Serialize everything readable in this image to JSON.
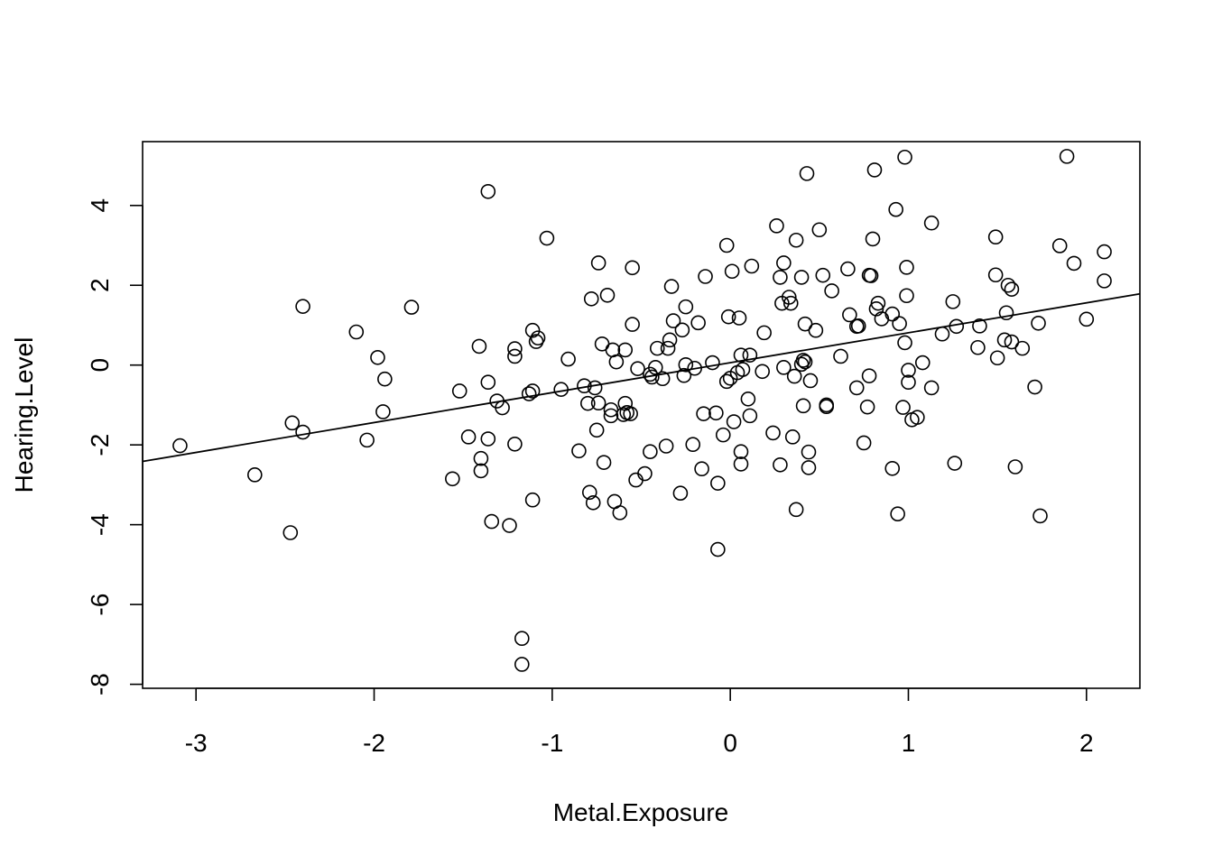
{
  "chart_data": {
    "type": "scatter",
    "title": "",
    "xlabel": "Metal.Exposure",
    "ylabel": "Hearing.Level",
    "xlim": [
      -3.3,
      2.3
    ],
    "ylim": [
      -8.1,
      5.6
    ],
    "xticks": [
      -3,
      -2,
      -1,
      0,
      1,
      2
    ],
    "yticks": [
      -8,
      -6,
      -4,
      -2,
      0,
      2,
      4
    ],
    "grid": false,
    "legend": "none",
    "fit_line": {
      "intercept": 0.06,
      "slope": 0.75
    },
    "points": [
      [
        -3.09,
        -2.02
      ],
      [
        -2.67,
        -2.75
      ],
      [
        -2.47,
        -4.2
      ],
      [
        -2.46,
        -1.45
      ],
      [
        -2.4,
        1.47
      ],
      [
        -2.4,
        -1.68
      ],
      [
        -2.1,
        0.83
      ],
      [
        -2.04,
        -1.88
      ],
      [
        -1.98,
        0.19
      ],
      [
        -1.95,
        -1.17
      ],
      [
        -1.94,
        -0.35
      ],
      [
        -1.79,
        1.45
      ],
      [
        -1.56,
        -2.85
      ],
      [
        -1.52,
        -0.65
      ],
      [
        -1.47,
        -1.8
      ],
      [
        -1.41,
        0.47
      ],
      [
        -1.4,
        -2.34
      ],
      [
        -1.4,
        -2.65
      ],
      [
        -1.36,
        4.35
      ],
      [
        -1.36,
        -0.43
      ],
      [
        -1.36,
        -1.85
      ],
      [
        -1.34,
        -3.92
      ],
      [
        -1.31,
        -0.9
      ],
      [
        -1.28,
        -1.07
      ],
      [
        -1.24,
        -4.02
      ],
      [
        -1.21,
        0.41
      ],
      [
        -1.21,
        0.22
      ],
      [
        -1.21,
        -1.98
      ],
      [
        -1.17,
        -6.85
      ],
      [
        -1.17,
        -7.5
      ],
      [
        -1.13,
        -0.72
      ],
      [
        -1.11,
        -0.65
      ],
      [
        -1.11,
        0.87
      ],
      [
        -1.11,
        -3.38
      ],
      [
        -1.09,
        0.59
      ],
      [
        -1.08,
        0.68
      ],
      [
        -1.03,
        3.18
      ],
      [
        -0.95,
        -0.61
      ],
      [
        -0.91,
        0.15
      ],
      [
        -0.85,
        -2.15
      ],
      [
        -0.82,
        -0.52
      ],
      [
        -0.8,
        -0.96
      ],
      [
        -0.79,
        -3.19
      ],
      [
        -0.78,
        1.66
      ],
      [
        -0.77,
        -3.45
      ],
      [
        -0.76,
        -0.57
      ],
      [
        -0.75,
        -1.63
      ],
      [
        -0.74,
        -0.95
      ],
      [
        -0.74,
        2.56
      ],
      [
        -0.72,
        0.53
      ],
      [
        -0.71,
        -2.44
      ],
      [
        -0.69,
        1.75
      ],
      [
        -0.67,
        -1.12
      ],
      [
        -0.67,
        -1.27
      ],
      [
        -0.66,
        0.38
      ],
      [
        -0.65,
        -3.42
      ],
      [
        -0.64,
        0.08
      ],
      [
        -0.62,
        -3.7
      ],
      [
        -0.6,
        -1.24
      ],
      [
        -0.59,
        0.38
      ],
      [
        -0.59,
        -0.96
      ],
      [
        -0.58,
        -1.19
      ],
      [
        -0.56,
        -1.22
      ],
      [
        -0.55,
        2.44
      ],
      [
        -0.55,
        1.02
      ],
      [
        -0.53,
        -2.88
      ],
      [
        -0.52,
        -0.09
      ],
      [
        -0.48,
        -2.72
      ],
      [
        -0.45,
        -2.17
      ],
      [
        -0.45,
        -0.23
      ],
      [
        -0.44,
        -0.3
      ],
      [
        -0.42,
        -0.06
      ],
      [
        -0.41,
        0.42
      ],
      [
        -0.38,
        -0.34
      ],
      [
        -0.36,
        -2.03
      ],
      [
        -0.35,
        0.42
      ],
      [
        -0.34,
        0.63
      ],
      [
        -0.33,
        1.97
      ],
      [
        -0.32,
        1.11
      ],
      [
        -0.28,
        -3.21
      ],
      [
        -0.27,
        0.88
      ],
      [
        -0.26,
        -0.26
      ],
      [
        -0.25,
        0.01
      ],
      [
        -0.25,
        1.46
      ],
      [
        -0.21,
        -1.99
      ],
      [
        -0.2,
        -0.08
      ],
      [
        -0.18,
        1.06
      ],
      [
        -0.16,
        -2.6
      ],
      [
        -0.15,
        -1.22
      ],
      [
        -0.14,
        2.22
      ],
      [
        -0.1,
        0.06
      ],
      [
        -0.08,
        -1.2
      ],
      [
        -0.07,
        -2.96
      ],
      [
        -0.07,
        -4.62
      ],
      [
        -0.04,
        -1.75
      ],
      [
        -0.02,
        3.0
      ],
      [
        -0.02,
        -0.41
      ],
      [
        -0.01,
        1.21
      ],
      [
        0.0,
        -0.33
      ],
      [
        0.01,
        2.35
      ],
      [
        0.02,
        -1.42
      ],
      [
        0.04,
        -0.19
      ],
      [
        0.05,
        1.18
      ],
      [
        0.06,
        -2.17
      ],
      [
        0.06,
        -2.48
      ],
      [
        0.06,
        0.25
      ],
      [
        0.07,
        -0.11
      ],
      [
        0.1,
        -0.85
      ],
      [
        0.11,
        -1.27
      ],
      [
        0.11,
        0.25
      ],
      [
        0.12,
        2.48
      ],
      [
        0.18,
        -0.16
      ],
      [
        0.19,
        0.81
      ],
      [
        0.24,
        -1.7
      ],
      [
        0.26,
        3.49
      ],
      [
        0.28,
        2.2
      ],
      [
        0.28,
        -2.5
      ],
      [
        0.29,
        1.55
      ],
      [
        0.3,
        -0.06
      ],
      [
        0.3,
        2.56
      ],
      [
        0.33,
        1.7
      ],
      [
        0.34,
        1.55
      ],
      [
        0.35,
        -1.8
      ],
      [
        0.36,
        -0.28
      ],
      [
        0.37,
        3.13
      ],
      [
        0.37,
        -3.62
      ],
      [
        0.4,
        0.02
      ],
      [
        0.4,
        2.2
      ],
      [
        0.41,
        0.12
      ],
      [
        0.41,
        -1.02
      ],
      [
        0.42,
        1.03
      ],
      [
        0.42,
        0.08
      ],
      [
        0.43,
        4.8
      ],
      [
        0.44,
        -2.18
      ],
      [
        0.44,
        -2.57
      ],
      [
        0.45,
        -0.39
      ],
      [
        0.48,
        0.87
      ],
      [
        0.5,
        3.39
      ],
      [
        0.52,
        2.25
      ],
      [
        0.54,
        -1.0
      ],
      [
        0.54,
        -1.04
      ],
      [
        0.57,
        1.86
      ],
      [
        0.62,
        0.22
      ],
      [
        0.66,
        2.41
      ],
      [
        0.67,
        1.26
      ],
      [
        0.71,
        -0.57
      ],
      [
        0.71,
        0.97
      ],
      [
        0.72,
        0.98
      ],
      [
        0.75,
        -1.95
      ],
      [
        0.77,
        -1.05
      ],
      [
        0.78,
        2.25
      ],
      [
        0.78,
        -0.27
      ],
      [
        0.79,
        2.24
      ],
      [
        0.8,
        3.16
      ],
      [
        0.81,
        4.89
      ],
      [
        0.82,
        1.41
      ],
      [
        0.83,
        1.55
      ],
      [
        0.85,
        1.16
      ],
      [
        0.91,
        -2.59
      ],
      [
        0.91,
        1.28
      ],
      [
        0.93,
        3.9
      ],
      [
        0.94,
        -3.73
      ],
      [
        0.95,
        1.04
      ],
      [
        0.97,
        -1.06
      ],
      [
        0.98,
        5.21
      ],
      [
        0.98,
        0.56
      ],
      [
        0.99,
        2.45
      ],
      [
        0.99,
        1.74
      ],
      [
        1.0,
        -0.43
      ],
      [
        1.0,
        -0.13
      ],
      [
        1.02,
        -1.37
      ],
      [
        1.05,
        -1.31
      ],
      [
        1.08,
        0.06
      ],
      [
        1.13,
        3.56
      ],
      [
        1.13,
        -0.57
      ],
      [
        1.19,
        0.78
      ],
      [
        1.25,
        1.59
      ],
      [
        1.26,
        -2.46
      ],
      [
        1.27,
        0.97
      ],
      [
        1.39,
        0.44
      ],
      [
        1.4,
        0.98
      ],
      [
        1.49,
        3.21
      ],
      [
        1.49,
        2.26
      ],
      [
        1.5,
        0.18
      ],
      [
        1.54,
        0.63
      ],
      [
        1.55,
        1.31
      ],
      [
        1.56,
        2.0
      ],
      [
        1.58,
        1.9
      ],
      [
        1.58,
        0.58
      ],
      [
        1.6,
        -2.55
      ],
      [
        1.64,
        0.42
      ],
      [
        1.71,
        -0.55
      ],
      [
        1.73,
        1.05
      ],
      [
        1.74,
        -3.78
      ],
      [
        1.85,
        2.99
      ],
      [
        1.89,
        5.23
      ],
      [
        1.93,
        2.55
      ],
      [
        2.0,
        1.15
      ],
      [
        2.1,
        2.84
      ],
      [
        2.1,
        2.11
      ]
    ]
  }
}
